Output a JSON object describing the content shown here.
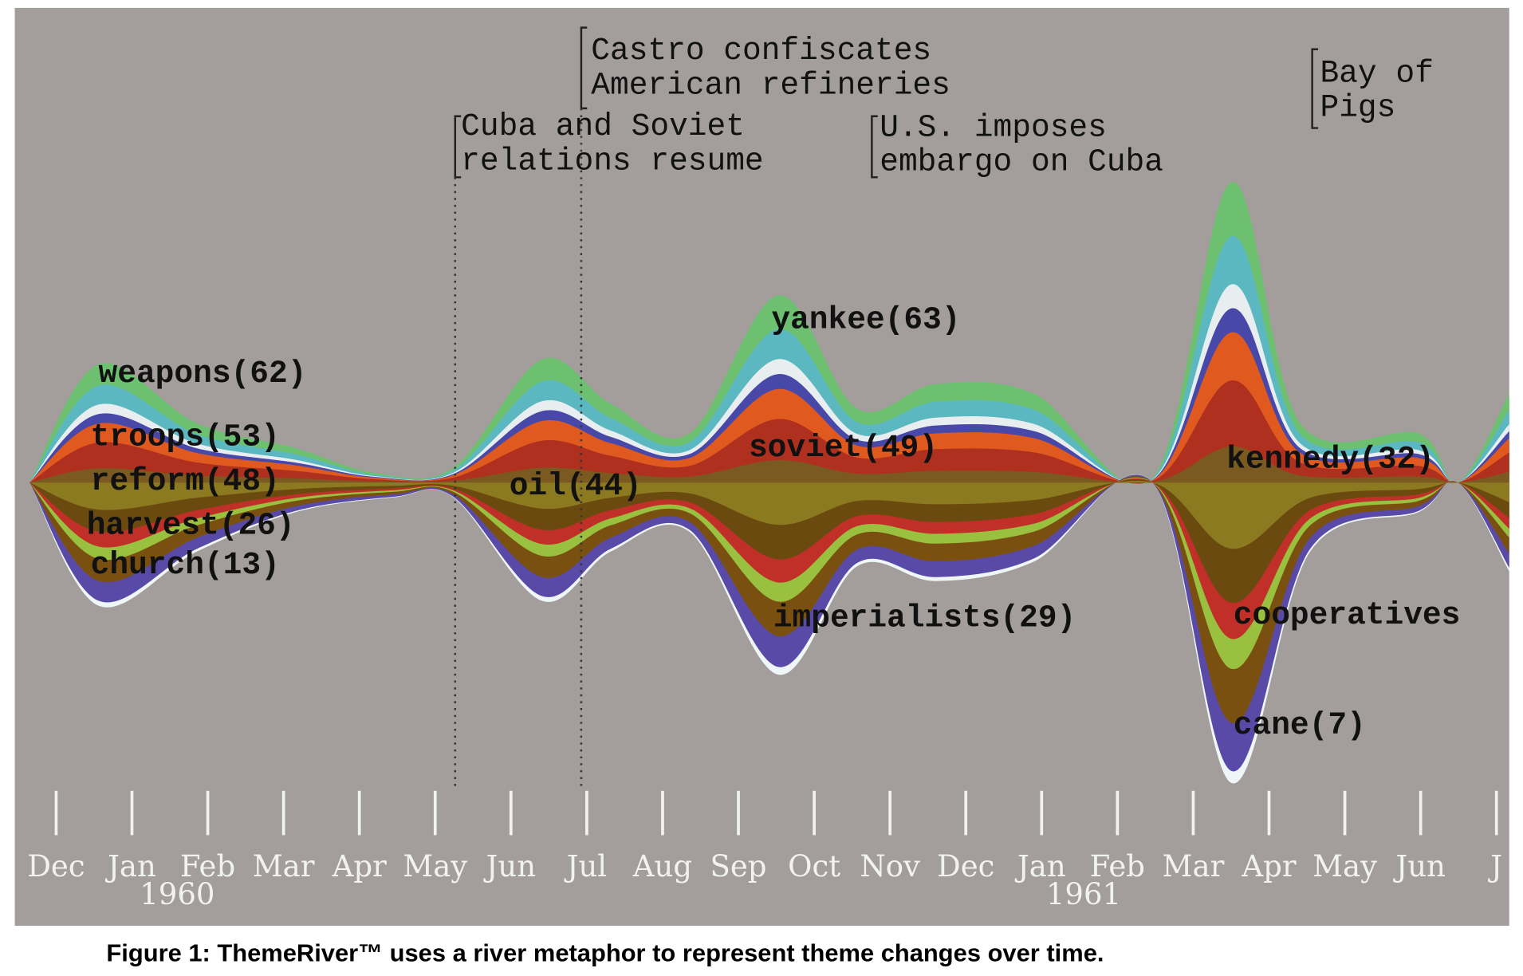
{
  "figure": {
    "annotations": [
      {
        "lines": [
          "Castro confiscates",
          "American refineries"
        ]
      },
      {
        "lines": [
          "Cuba and Soviet",
          "relations resume"
        ]
      },
      {
        "lines": [
          "U.S. imposes",
          "embargo on Cuba"
        ]
      },
      {
        "lines": [
          "Bay of",
          "Pigs"
        ]
      }
    ],
    "themes": [
      "weapons(62)",
      "troops(53)",
      "reform(48)",
      "harvest(26)",
      "church(13)",
      "oil(44)",
      "yankee(63)",
      "soviet(49)",
      "imperialists(29)",
      "kennedy(32)",
      "cooperatives",
      "cane(7)"
    ],
    "months": [
      "Dec",
      "Jan",
      "Feb",
      "Mar",
      "Apr",
      "May",
      "Jun",
      "Jul",
      "Aug",
      "Sep",
      "Oct",
      "Nov",
      "Dec",
      "Jan",
      "Feb",
      "Mar",
      "Apr",
      "May",
      "Jun",
      "J"
    ],
    "years": [
      "1960",
      "1961"
    ],
    "caption": "Figure 1: ThemeRiver™ uses a river metaphor to represent theme changes over time."
  }
}
